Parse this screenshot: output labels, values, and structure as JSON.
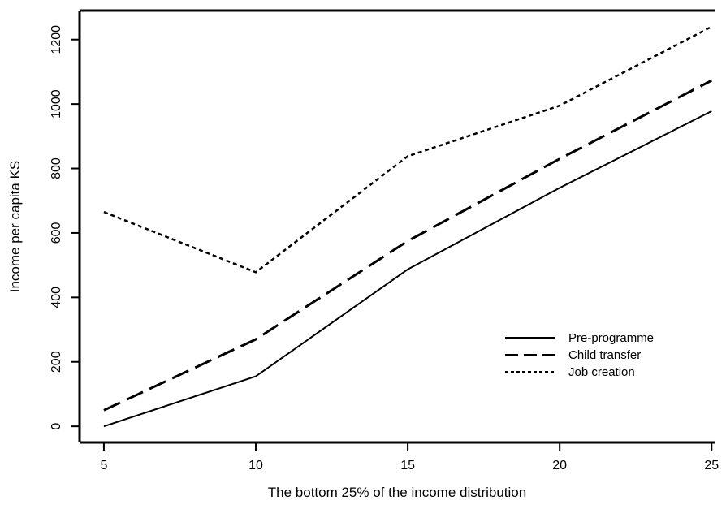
{
  "chart_data": {
    "type": "line",
    "title": "",
    "xlabel": "The bottom 25% of the income distribution",
    "ylabel": "Income per capita KS",
    "x": [
      5,
      10,
      15,
      20,
      25
    ],
    "xlim": [
      4.2,
      25.1
    ],
    "ylim": [
      -50,
      1290
    ],
    "xticks": [
      5,
      10,
      15,
      20,
      25
    ],
    "yticks": [
      0,
      200,
      400,
      600,
      800,
      1000,
      1200
    ],
    "grid": false,
    "legend_position": "bottom-right",
    "series": [
      {
        "name": "Pre-programme",
        "style": "solid",
        "values": [
          0,
          155,
          487,
          740,
          978
        ]
      },
      {
        "name": "Child transfer",
        "style": "longdash",
        "values": [
          50,
          270,
          575,
          830,
          1073
        ]
      },
      {
        "name": "Job creation",
        "style": "dotted",
        "values": [
          665,
          478,
          838,
          995,
          1240
        ]
      }
    ]
  }
}
